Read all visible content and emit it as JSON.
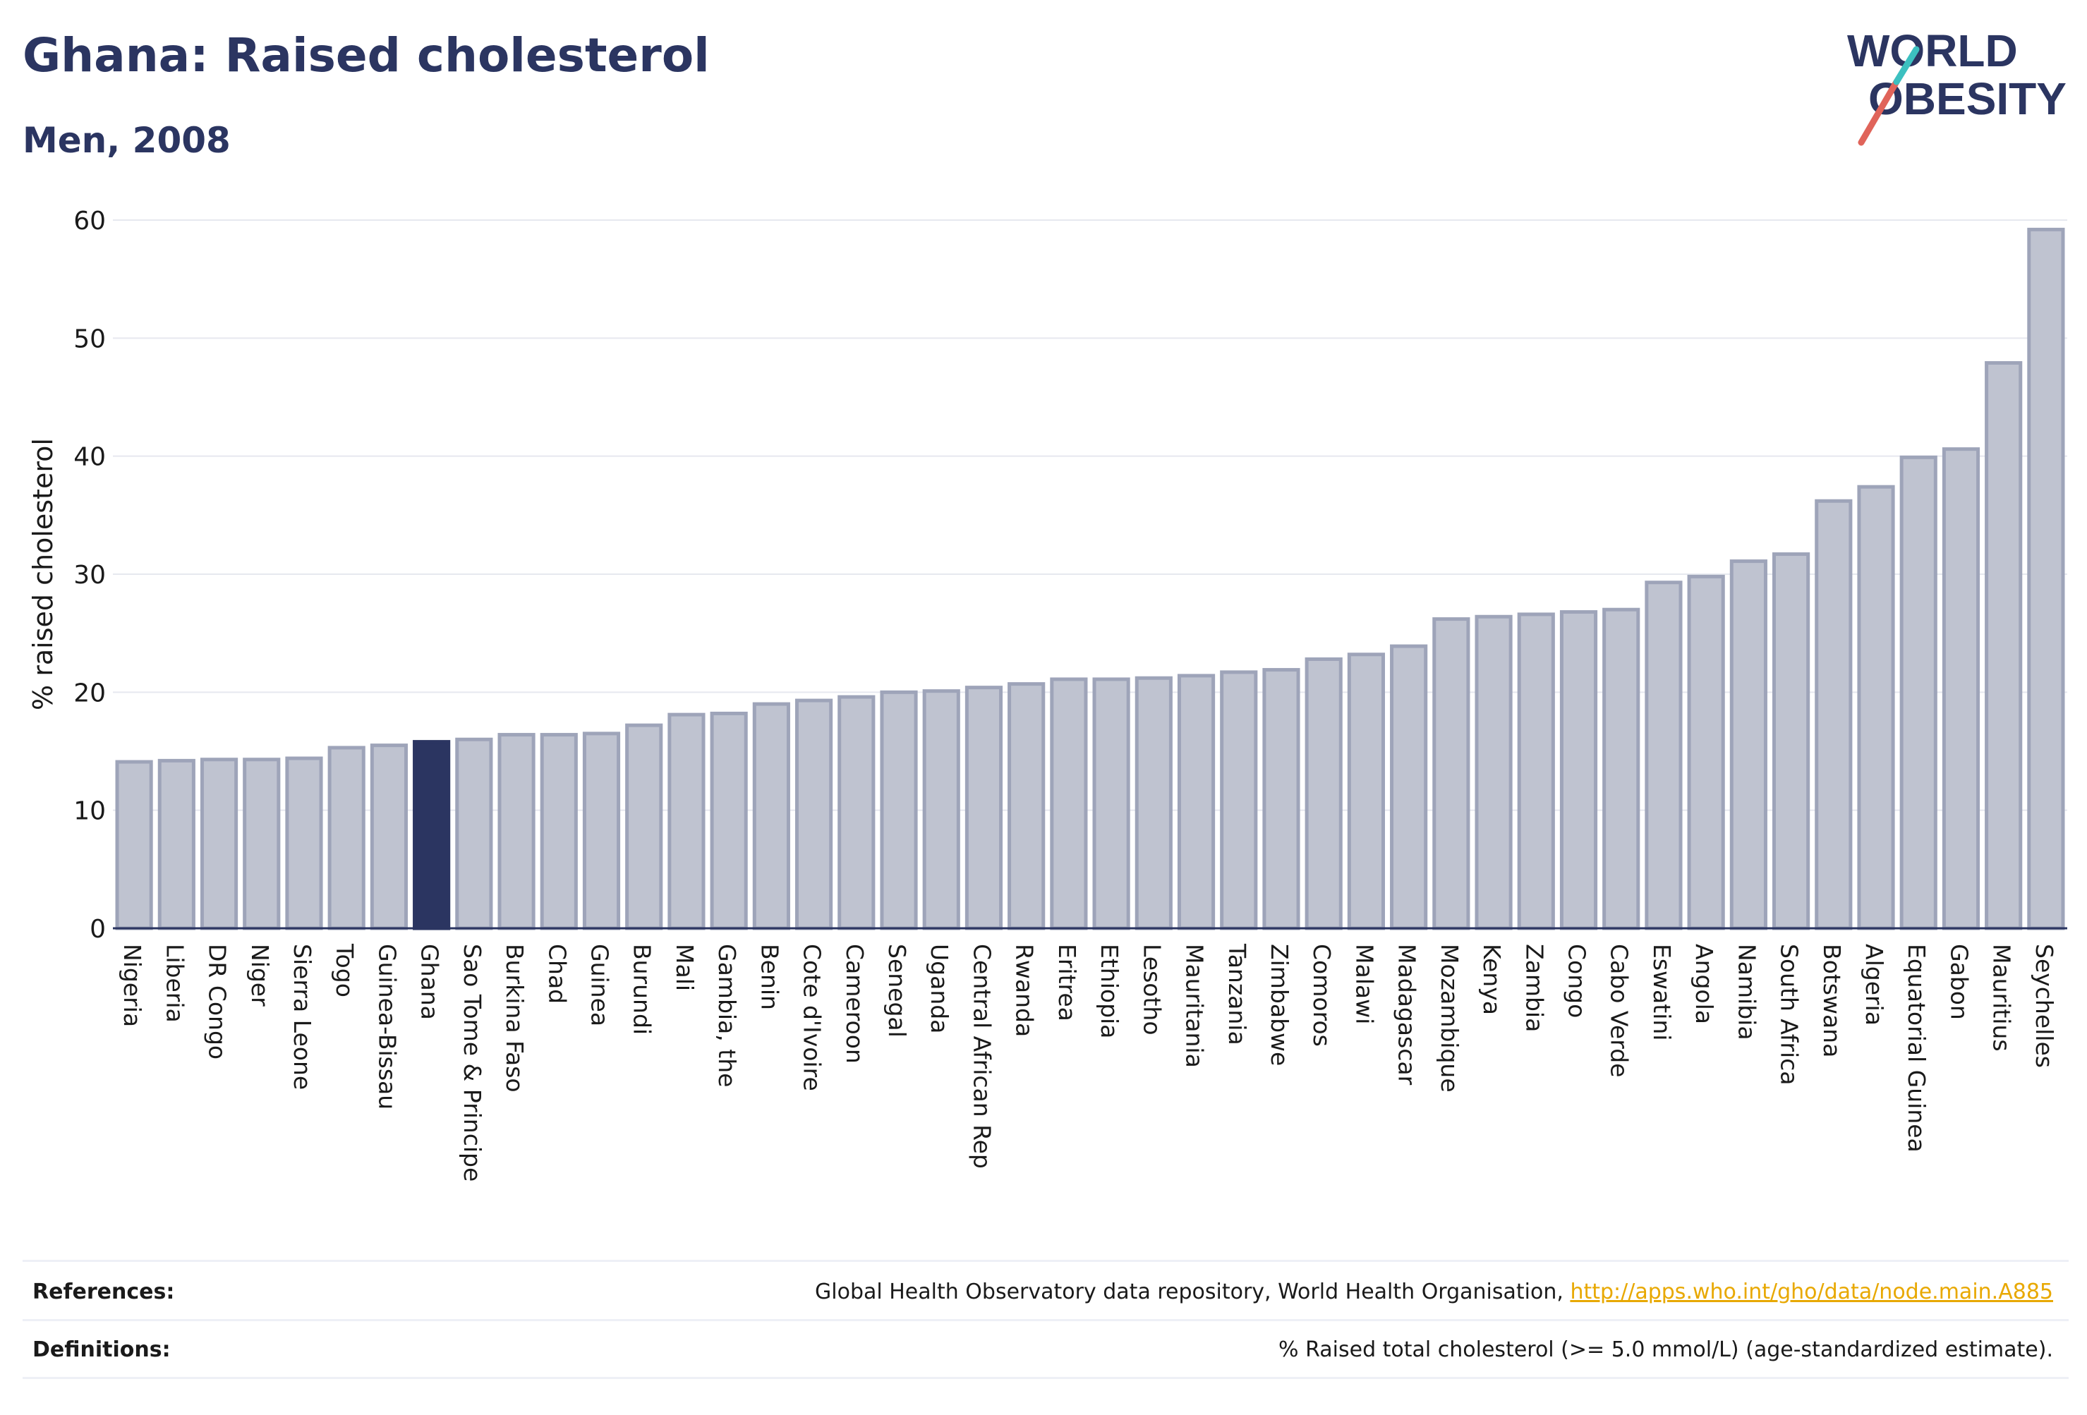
{
  "header": {
    "title": "Ghana: Raised cholesterol",
    "subtitle": "Men, 2008"
  },
  "logo": {
    "line1": "WORLD",
    "line2": "OBESITY"
  },
  "colors": {
    "highlight": "#2b3561",
    "bar_fill": "#bfc3d0",
    "bar_stroke": "#9ea4b9",
    "slash_red": "#e0645a",
    "slash_teal": "#3cc0c0"
  },
  "chart_data": {
    "type": "bar",
    "ylabel": "% raised cholesterol",
    "ylim": [
      0,
      60
    ],
    "yticks": [
      0,
      10,
      20,
      30,
      40,
      50,
      60
    ],
    "grid": true,
    "highlight": "Ghana",
    "categories": [
      "Nigeria",
      "Liberia",
      "DR Congo",
      "Niger",
      "Sierra Leone",
      "Togo",
      "Guinea-Bissau",
      "Ghana",
      "Sao Tome & Principe",
      "Burkina Faso",
      "Chad",
      "Guinea",
      "Burundi",
      "Mali",
      "Gambia, the",
      "Benin",
      "Cote d'Ivoire",
      "Cameroon",
      "Senegal",
      "Uganda",
      "Central African Rep",
      "Rwanda",
      "Eritrea",
      "Ethiopia",
      "Lesotho",
      "Mauritania",
      "Tanzania",
      "Zimbabwe",
      "Comoros",
      "Malawi",
      "Madagascar",
      "Mozambique",
      "Kenya",
      "Zambia",
      "Congo",
      "Cabo Verde",
      "Eswatini",
      "Angola",
      "Namibia",
      "South Africa",
      "Botswana",
      "Algeria",
      "Equatorial Guinea",
      "Gabon",
      "Mauritius",
      "Seychelles"
    ],
    "values": [
      14.1,
      14.2,
      14.3,
      14.3,
      14.4,
      15.3,
      15.5,
      15.8,
      16.0,
      16.4,
      16.4,
      16.5,
      17.2,
      18.1,
      18.2,
      19.0,
      19.3,
      19.6,
      20.0,
      20.1,
      20.4,
      20.7,
      21.1,
      21.1,
      21.2,
      21.4,
      21.7,
      21.9,
      22.8,
      23.2,
      23.9,
      26.2,
      26.4,
      26.6,
      26.8,
      27.0,
      29.3,
      29.8,
      31.1,
      31.7,
      36.2,
      37.4,
      39.9,
      40.6,
      47.9,
      59.2
    ]
  },
  "footer": {
    "references_label": "References:",
    "references_text": "Global Health Observatory data repository, World Health Organisation, ",
    "references_link": "http://apps.who.int/gho/data/node.main.A885",
    "definitions_label": "Definitions:",
    "definitions_text": "% Raised total cholesterol (>= 5.0 mmol/L) (age-standardized estimate)."
  }
}
